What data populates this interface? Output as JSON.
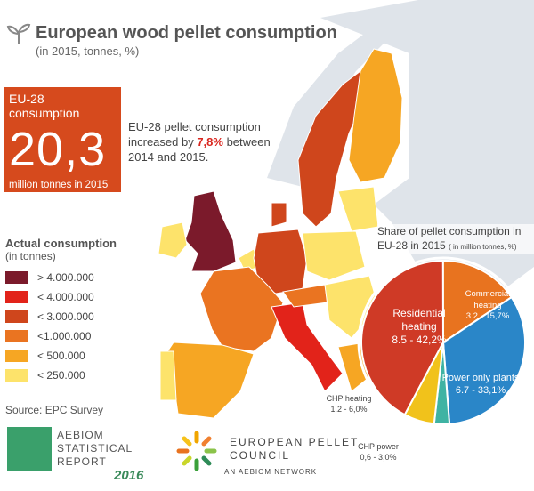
{
  "header": {
    "title": "European wood pellet consumption",
    "subtitle": "(in 2015, tonnes, %)"
  },
  "kpi": {
    "label": "EU-28 consumption",
    "value": "20,3",
    "unit": "million tonnes in 2015"
  },
  "note": {
    "before": "EU-28 pellet consumption increased by ",
    "highlight": "7,8%",
    "after": " between 2014 and 2015."
  },
  "legend": {
    "title": "Actual consumption",
    "subtitle": "(in tonnes)",
    "items": [
      {
        "label": "> 4.000.000",
        "color": "#7b1a2b"
      },
      {
        "label": "< 4.000.000",
        "color": "#e2231a"
      },
      {
        "label": "< 3.000.000",
        "color": "#cf461c"
      },
      {
        "label": "<1.000.000",
        "color": "#ea7421"
      },
      {
        "label": "< 500.000",
        "color": "#f6a623"
      },
      {
        "label": "<  250.000",
        "color": "#fde36b"
      }
    ]
  },
  "source": "Source: EPC Survey",
  "logos": {
    "aebiom": [
      "AEBIOM",
      "STATISTICAL",
      "REPORT"
    ],
    "year": "2016",
    "epc": [
      "EUROPEAN PELLET",
      "COUNCIL"
    ],
    "epc_tagline": "AN AEBIOM NETWORK"
  },
  "chart_data": {
    "type": "pie",
    "title": "Share of pellet consumption in EU-28 in 2015",
    "title_note": "( in million tonnes, %)",
    "categories": [
      "Residential heating",
      "Commercial heating",
      "Power only plants",
      "CHP power",
      "CHP heating"
    ],
    "values": [
      42.2,
      15.7,
      33.1,
      3.0,
      6.0
    ],
    "value_labels": [
      "8.5 - 42,2%",
      "3.2 - 15,7%",
      "6.7 - 33,1%",
      "0,6 - 3,0%",
      "1.2 - 6,0%"
    ],
    "colors": [
      "#cf3a26",
      "#e8731f",
      "#2a86c8",
      "#3fb3a3",
      "#f1c21b"
    ]
  }
}
